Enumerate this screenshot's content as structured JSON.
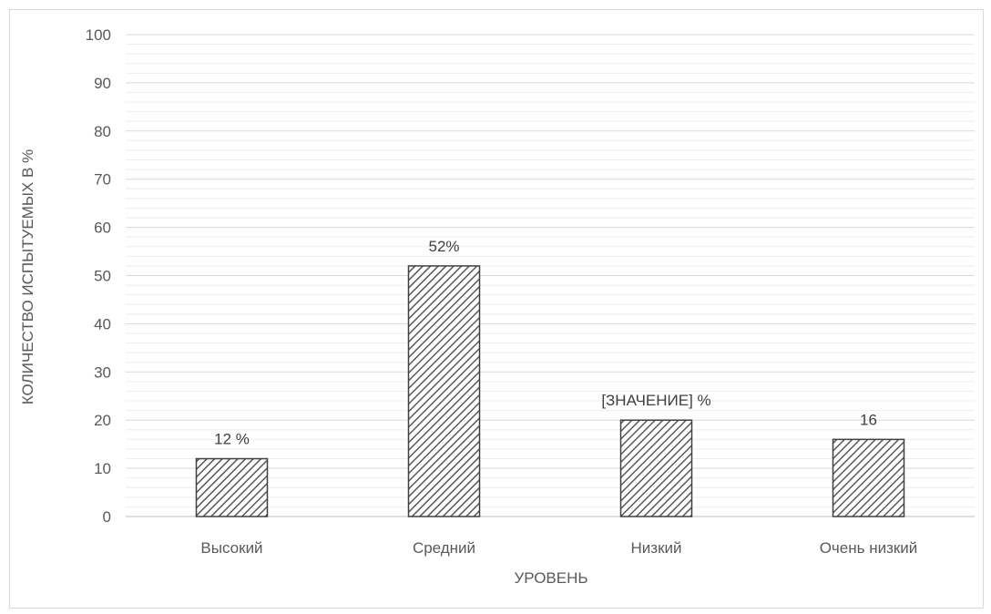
{
  "chart_data": {
    "type": "bar",
    "categories": [
      "Высокий",
      "Средний",
      "Низкий",
      "Очень низкий"
    ],
    "values": [
      12,
      52,
      20,
      16
    ],
    "data_labels": [
      "12 %",
      "52%",
      "[ЗНАЧЕНИЕ] %",
      "16"
    ],
    "xlabel": "УРОВЕНЬ",
    "ylabel": "КОЛИЧЕСТВО ИСПЫТУЕМЫХ В %",
    "ylim": [
      0,
      100
    ],
    "yticks": [
      0,
      10,
      20,
      30,
      40,
      50,
      60,
      70,
      80,
      90,
      100
    ],
    "minor_grid_step": 2,
    "grid": true,
    "legend": "none",
    "bar_fill": "diagonal-hatch",
    "colors": {
      "bar_stroke": "#404040",
      "hatch": "#595959",
      "major_grid": "#d9d9d9",
      "minor_grid": "#eeeeee",
      "text": "#595959"
    }
  }
}
